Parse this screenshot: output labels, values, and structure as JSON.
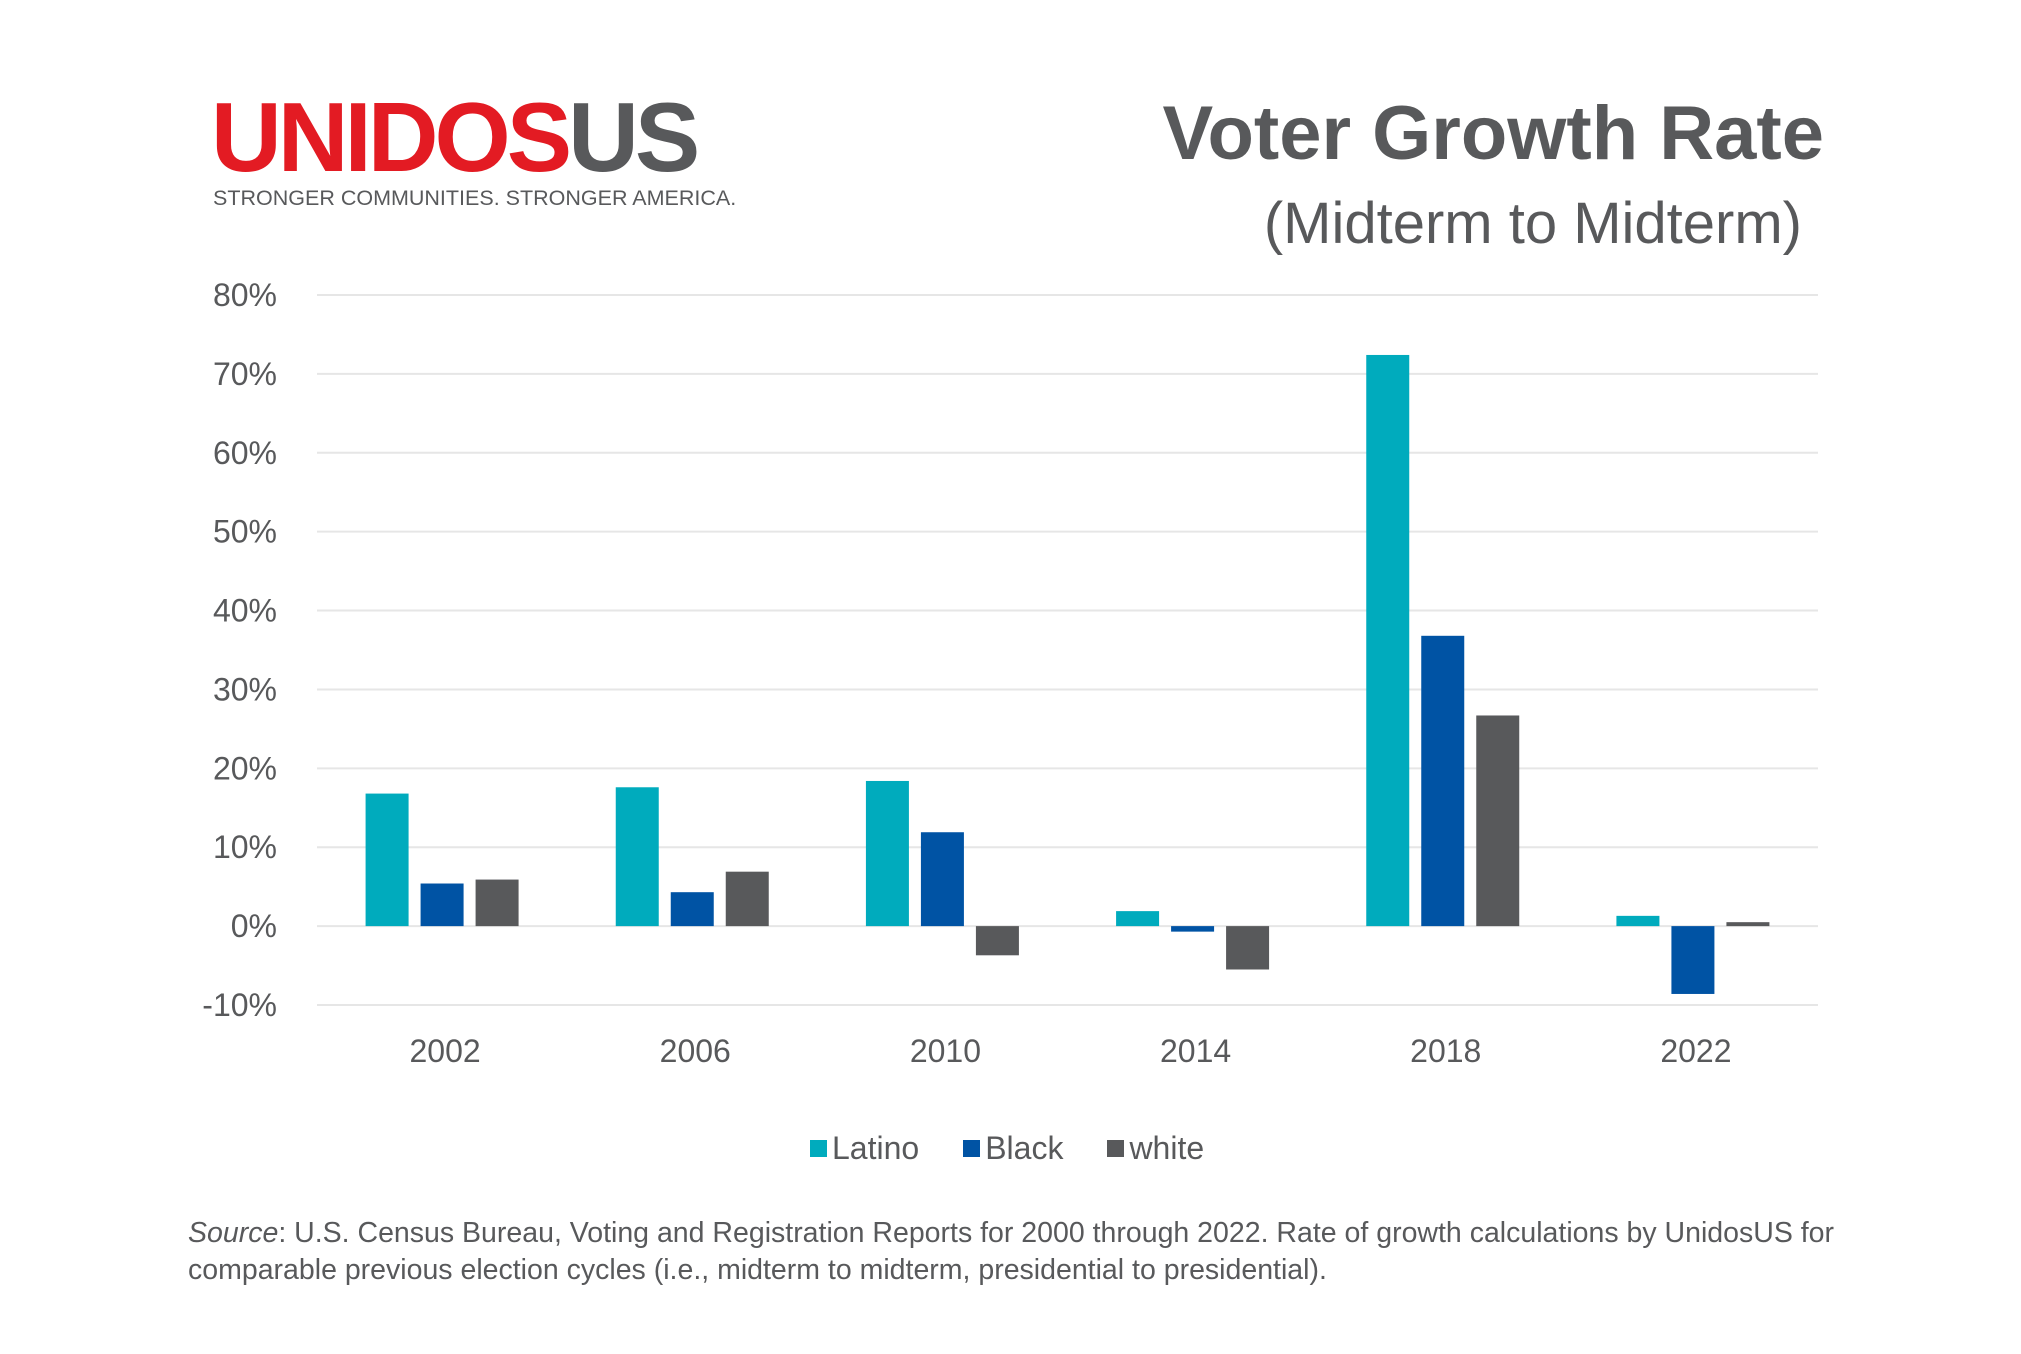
{
  "logo": {
    "part1": "UNIDOS",
    "part2": "US",
    "tagline": "STRONGER COMMUNITIES.  STRONGER AMERICA.",
    "colors": {
      "part1": "#e31b23",
      "part2": "#58595b"
    }
  },
  "header": {
    "title": "Voter Growth Rate",
    "subtitle": "(Midterm to Midterm)"
  },
  "chart_data": {
    "type": "bar",
    "title": "Voter Growth Rate",
    "subtitle": "(Midterm to Midterm)",
    "xlabel": "",
    "ylabel": "",
    "categories": [
      "2002",
      "2006",
      "2010",
      "2014",
      "2018",
      "2022"
    ],
    "series": [
      {
        "name": "Latino",
        "color": "#00abbd",
        "values": [
          16.8,
          17.6,
          18.4,
          1.9,
          72.4,
          1.3
        ]
      },
      {
        "name": "Black",
        "color": "#0053a4",
        "values": [
          5.4,
          4.3,
          11.9,
          -0.7,
          36.8,
          -8.6
        ]
      },
      {
        "name": "white",
        "color": "#58595b",
        "values": [
          5.9,
          6.9,
          -3.7,
          -5.5,
          26.7,
          0.5
        ]
      }
    ],
    "ylim": [
      -10,
      80
    ],
    "yticks": [
      -10,
      0,
      10,
      20,
      30,
      40,
      50,
      60,
      70,
      80
    ],
    "ytick_labels": [
      "-10%",
      "0%",
      "10%",
      "20%",
      "30%",
      "40%",
      "50%",
      "60%",
      "70%",
      "80%"
    ],
    "grid": true,
    "legend_position": "bottom-center",
    "units": "percent"
  },
  "legend": {
    "items": [
      {
        "label": "Latino",
        "color": "#00abbd"
      },
      {
        "label": "Black",
        "color": "#0053a4"
      },
      {
        "label": "white",
        "color": "#58595b"
      }
    ]
  },
  "source": {
    "label": "Source",
    "text": ": U.S. Census Bureau, Voting and Registration Reports for 2000 through 2022. Rate of growth calculations by UnidosUS for comparable previous election cycles (i.e., midterm to midterm, presidential to presidential)."
  }
}
